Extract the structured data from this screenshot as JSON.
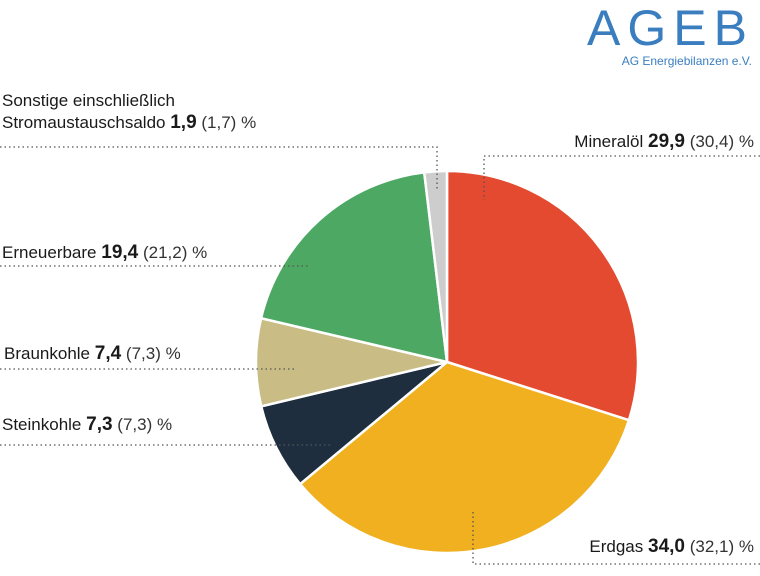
{
  "logo": {
    "name": "AGEB",
    "subtitle": "AG Energiebilanzen e.V."
  },
  "percent_sign": "%",
  "chart_data": {
    "type": "pie",
    "series": [
      {
        "name": "Mineralöl",
        "value": 29.9,
        "previous": 30.4,
        "value_text": "29,9",
        "previous_text": "(30,4)",
        "color": "#e34a2f"
      },
      {
        "name": "Erdgas",
        "value": 34.0,
        "previous": 32.1,
        "value_text": "34,0",
        "previous_text": "(32,1)",
        "color": "#f0b020"
      },
      {
        "name": "Steinkohle",
        "value": 7.3,
        "previous": 7.3,
        "value_text": "7,3",
        "previous_text": "(7,3)",
        "color": "#1f2e3f"
      },
      {
        "name": "Braunkohle",
        "value": 7.4,
        "previous": 7.3,
        "value_text": "7,4",
        "previous_text": "(7,3)",
        "color": "#c9bd85"
      },
      {
        "name": "Erneuerbare",
        "value": 19.4,
        "previous": 21.2,
        "value_text": "19,4",
        "previous_text": "(21,2)",
        "color": "#4ca862"
      },
      {
        "name_lines": [
          "Sonstige einschließlich",
          "Stromaustauschsaldo"
        ],
        "value": 1.9,
        "previous": 1.7,
        "value_text": "1,9",
        "previous_text": "(1,7)",
        "color": "#cdcdcd"
      }
    ]
  }
}
